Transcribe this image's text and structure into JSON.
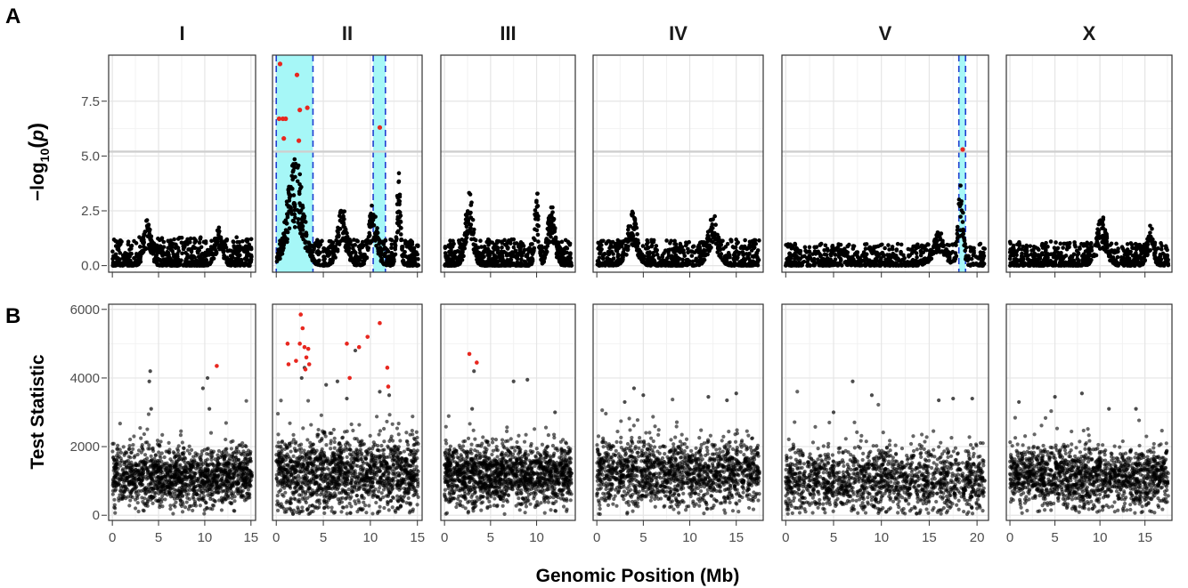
{
  "figure": {
    "panel_a_label": "A",
    "panel_b_label": "B",
    "x_axis_title": "Genomic Position (Mb)",
    "panel_a_ylabel": {
      "prefix": "−log",
      "sub": "10",
      "open": "(",
      "var": "p",
      "close": ")"
    },
    "panel_b_ylabel": "Test Statistic"
  },
  "colors": {
    "point": "#000000",
    "significant": "#e8271f",
    "interval_fill": "#a6f7f7",
    "interval_line": "#1f3fd1",
    "threshold": "#cfcfcf",
    "grid_major": "#e5e5e5",
    "grid_minor": "#f2f2f2",
    "panel_border": "#333333"
  },
  "chart_data": [
    {
      "type": "scatter",
      "panel": "A",
      "ylabel": "−log10(p)",
      "xlabel": "Genomic Position (Mb)",
      "ylim": [
        -0.3,
        9.6
      ],
      "y_ticks": [
        "0.0",
        "2.5",
        "5.0",
        "7.5"
      ],
      "threshold": 5.2,
      "grid": true,
      "facets": [
        {
          "chrom": "I",
          "xlim": [
            -0.4,
            15.5
          ],
          "x_ticks": [
            0,
            5,
            10,
            15
          ],
          "baseline_max": 1.3,
          "peaks": [
            {
              "x": 3.8,
              "h": 2.2,
              "w": 0.6
            },
            {
              "x": 11.5,
              "h": 1.8,
              "w": 0.6
            }
          ],
          "intervals": [],
          "significant": []
        },
        {
          "chrom": "II",
          "xlim": [
            -0.4,
            15.5
          ],
          "x_ticks": [
            0,
            5,
            10,
            15
          ],
          "baseline_max": 1.2,
          "peaks": [
            {
              "x": 2.0,
              "h": 5.0,
              "w": 1.2
            },
            {
              "x": 7.0,
              "h": 2.8,
              "w": 0.7
            },
            {
              "x": 10.3,
              "h": 3.2,
              "w": 0.6
            },
            {
              "x": 13.0,
              "h": 4.4,
              "w": 0.3
            }
          ],
          "intervals": [
            [
              0.0,
              3.9
            ],
            [
              10.3,
              11.6
            ]
          ],
          "significant": [
            [
              0.4,
              9.2
            ],
            [
              2.2,
              8.7
            ],
            [
              0.3,
              6.7
            ],
            [
              0.7,
              6.7
            ],
            [
              1.0,
              6.7
            ],
            [
              2.5,
              7.1
            ],
            [
              3.3,
              7.2
            ],
            [
              0.8,
              5.8
            ],
            [
              2.4,
              5.7
            ],
            [
              11.0,
              6.3
            ]
          ]
        },
        {
          "chrom": "III",
          "xlim": [
            -0.4,
            14.2
          ],
          "x_ticks": [
            0,
            5,
            10
          ],
          "baseline_max": 1.2,
          "peaks": [
            {
              "x": 2.7,
              "h": 3.5,
              "w": 0.6
            },
            {
              "x": 10.0,
              "h": 3.7,
              "w": 0.3
            },
            {
              "x": 11.6,
              "h": 2.8,
              "w": 0.6
            }
          ],
          "intervals": [],
          "significant": []
        },
        {
          "chrom": "IV",
          "xlim": [
            -0.4,
            17.9
          ],
          "x_ticks": [
            0,
            5,
            10,
            15
          ],
          "baseline_max": 1.2,
          "peaks": [
            {
              "x": 3.8,
              "h": 2.5,
              "w": 0.8
            },
            {
              "x": 12.5,
              "h": 2.4,
              "w": 0.8
            }
          ],
          "intervals": [],
          "significant": []
        },
        {
          "chrom": "V",
          "xlim": [
            -0.4,
            21.2
          ],
          "x_ticks": [
            0,
            5,
            10,
            15,
            20
          ],
          "baseline_max": 1.0,
          "peaks": [
            {
              "x": 18.3,
              "h": 3.9,
              "w": 0.4
            },
            {
              "x": 16.0,
              "h": 1.6,
              "w": 1.0
            }
          ],
          "intervals": [
            [
              18.1,
              18.8
            ]
          ],
          "significant": [
            [
              18.5,
              5.3
            ]
          ]
        },
        {
          "chrom": "X",
          "xlim": [
            -0.4,
            18.0
          ],
          "x_ticks": [
            0,
            5,
            10,
            15
          ],
          "baseline_max": 1.1,
          "peaks": [
            {
              "x": 10.2,
              "h": 2.3,
              "w": 0.8
            },
            {
              "x": 15.6,
              "h": 2.0,
              "w": 0.5
            }
          ],
          "intervals": [],
          "significant": []
        }
      ]
    },
    {
      "type": "scatter",
      "panel": "B",
      "ylabel": "Test Statistic",
      "xlabel": "Genomic Position (Mb)",
      "ylim": [
        -150,
        6150
      ],
      "y_ticks": [
        0,
        2000,
        4000,
        6000
      ],
      "grid": true,
      "facets": [
        {
          "chrom": "I",
          "xlim": [
            -0.4,
            15.5
          ],
          "x_ticks": [
            0,
            5,
            10,
            15
          ],
          "center": 1150,
          "spread": 400,
          "outliers": [
            [
              4.1,
              4200
            ],
            [
              4.0,
              3900
            ],
            [
              9.8,
              3700
            ],
            [
              10.3,
              4000
            ],
            [
              10.5,
              3100
            ],
            [
              4.2,
              3100
            ]
          ],
          "significant": [
            [
              11.3,
              4350
            ]
          ]
        },
        {
          "chrom": "II",
          "xlim": [
            -0.4,
            15.5
          ],
          "x_ticks": [
            0,
            5,
            10,
            15
          ],
          "center": 1250,
          "spread": 520,
          "outliers": [
            [
              3.0,
              4300
            ],
            [
              2.7,
              4000
            ],
            [
              6.5,
              3900
            ],
            [
              8.4,
              4800
            ],
            [
              11.0,
              3600
            ],
            [
              12.0,
              3500
            ],
            [
              7.5,
              3400
            ],
            [
              5.3,
              3800
            ]
          ],
          "significant": [
            [
              2.6,
              5850
            ],
            [
              2.8,
              5450
            ],
            [
              1.2,
              5000
            ],
            [
              2.5,
              5000
            ],
            [
              3.0,
              4900
            ],
            [
              3.4,
              4850
            ],
            [
              3.2,
              4600
            ],
            [
              1.3,
              4400
            ],
            [
              2.1,
              4500
            ],
            [
              3.5,
              4400
            ],
            [
              3.1,
              4250
            ],
            [
              7.5,
              5000
            ],
            [
              8.8,
              4900
            ],
            [
              9.7,
              5200
            ],
            [
              11.0,
              5600
            ],
            [
              11.8,
              4300
            ],
            [
              7.8,
              4000
            ],
            [
              11.9,
              3750
            ]
          ]
        },
        {
          "chrom": "III",
          "xlim": [
            -0.4,
            14.2
          ],
          "x_ticks": [
            0,
            5,
            10
          ],
          "center": 1200,
          "spread": 420,
          "outliers": [
            [
              3.2,
              4200
            ],
            [
              7.5,
              3900
            ],
            [
              9.0,
              3950
            ],
            [
              3.0,
              3100
            ],
            [
              12.0,
              3000
            ]
          ],
          "significant": [
            [
              2.7,
              4700
            ],
            [
              3.5,
              4450
            ]
          ]
        },
        {
          "chrom": "IV",
          "xlim": [
            -0.4,
            17.9
          ],
          "x_ticks": [
            0,
            5,
            10,
            15
          ],
          "center": 1250,
          "spread": 450,
          "outliers": [
            [
              4.0,
              3700
            ],
            [
              5.0,
              3500
            ],
            [
              12.0,
              3450
            ],
            [
              15.0,
              3550
            ],
            [
              14.0,
              3350
            ],
            [
              3.0,
              3300
            ]
          ],
          "significant": []
        },
        {
          "chrom": "V",
          "xlim": [
            -0.4,
            21.2
          ],
          "x_ticks": [
            0,
            5,
            10,
            15,
            20
          ],
          "center": 1050,
          "spread": 460,
          "outliers": [
            [
              7.0,
              3900
            ],
            [
              17.5,
              3400
            ],
            [
              9.0,
              3500
            ],
            [
              19.5,
              3400
            ],
            [
              16.0,
              3350
            ],
            [
              5.0,
              3000
            ]
          ],
          "significant": []
        },
        {
          "chrom": "X",
          "xlim": [
            -0.4,
            18.0
          ],
          "x_ticks": [
            0,
            5,
            10,
            15
          ],
          "center": 1150,
          "spread": 420,
          "outliers": [
            [
              8.0,
              3550
            ],
            [
              5.0,
              3450
            ],
            [
              11.0,
              3100
            ],
            [
              14.0,
              3100
            ],
            [
              1.0,
              3300
            ]
          ],
          "significant": []
        }
      ]
    }
  ]
}
